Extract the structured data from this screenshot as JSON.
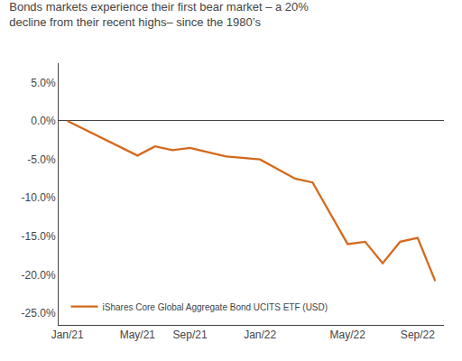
{
  "chart_data": {
    "type": "line",
    "title": "Bonds markets experience their first bear market – a 20%\ndecline from their recent highs– since the 1980’s",
    "x": [
      0,
      4,
      5,
      6,
      7,
      9,
      11,
      13,
      14,
      16,
      17,
      18,
      19,
      20,
      21
    ],
    "series": [
      {
        "name": "iShares Core Global Aggregate Bond UCITS ETF (USD)",
        "color": "#d4691c",
        "values": [
          0.0,
          -4.5,
          -3.3,
          -3.8,
          -3.5,
          -4.6,
          -5.0,
          -7.5,
          -8.0,
          -16.0,
          -15.7,
          -18.5,
          -15.7,
          -15.2,
          -20.8
        ]
      }
    ],
    "xlim": [
      -0.5,
      21.5
    ],
    "xticks": [
      {
        "value": 0,
        "label": "Jan/21"
      },
      {
        "value": 4,
        "label": "May/21"
      },
      {
        "value": 7,
        "label": "Sep/21"
      },
      {
        "value": 11,
        "label": "Jan/22"
      },
      {
        "value": 16,
        "label": "May/22"
      },
      {
        "value": 20,
        "label": "Sep/22"
      }
    ],
    "ylim": [
      -26.5,
      7.5
    ],
    "yticks": [
      {
        "value": 5.0,
        "label": "5.0%"
      },
      {
        "value": 0.0,
        "label": "0.0%"
      },
      {
        "value": -5.0,
        "label": "-5.0%"
      },
      {
        "value": -10.0,
        "label": "-10.0%"
      },
      {
        "value": -15.0,
        "label": "-15.0%"
      },
      {
        "value": -20.0,
        "label": "-20.0%"
      },
      {
        "value": -25.0,
        "label": "-25.0%"
      }
    ],
    "grid": false,
    "legend": "lower left"
  }
}
